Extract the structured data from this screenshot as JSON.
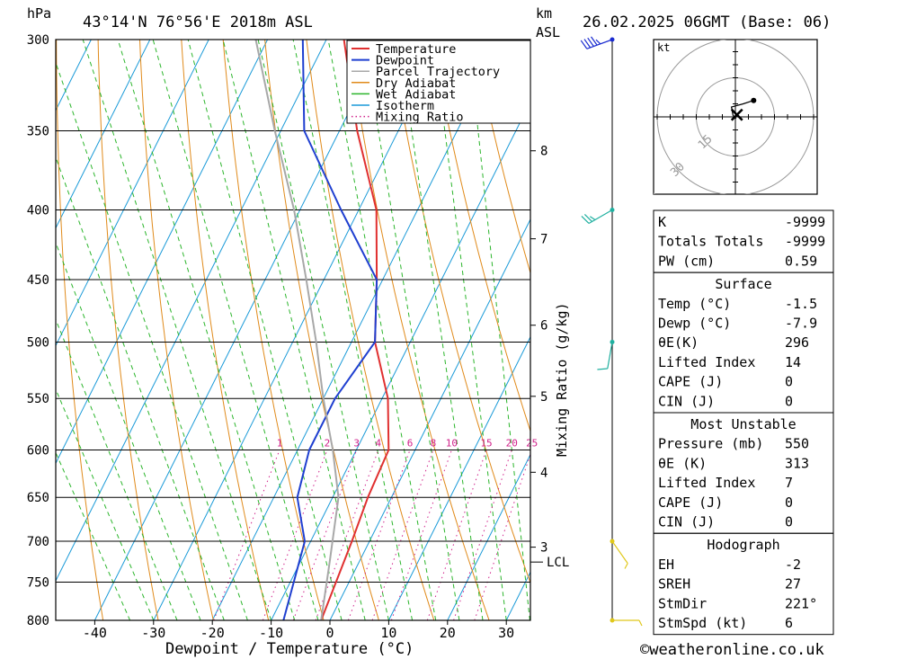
{
  "header": {
    "unit_hpa": "hPa",
    "location": "43°14'N 76°56'E 2018m ASL",
    "unit_km": "km",
    "unit_asl": "ASL",
    "datetime": "26.02.2025 06GMT (Base: 06)"
  },
  "footer": {
    "xlabel": "Dewpoint / Temperature (°C)",
    "mixing_label": "Mixing Ratio (g/kg)",
    "credit": "©weatheronline.co.uk"
  },
  "colors": {
    "temperature": "#e03030",
    "dewpoint": "#1f3fd0",
    "parcel": "#a8a8a8",
    "dry_adiabat": "#e08a1a",
    "wet_adiabat": "#2bb52b",
    "isotherm": "#1a9ad8",
    "mixing_ratio": "#d0208a",
    "wind": "#1a2bd0"
  },
  "chart_data": {
    "type": "line",
    "x_axis": {
      "label": "Dewpoint / Temperature (°C)",
      "range": [
        -47,
        34
      ],
      "ticks": [
        -40,
        -30,
        -20,
        -10,
        0,
        10,
        20,
        30
      ]
    },
    "y_axis": {
      "unit": "hPa",
      "scale": "log",
      "range": [
        800,
        300
      ],
      "ticks": [
        300,
        350,
        400,
        450,
        500,
        550,
        600,
        650,
        700,
        750,
        800
      ]
    },
    "km_ticks": [
      {
        "km": "8",
        "p": 362
      },
      {
        "km": "7",
        "p": 420
      },
      {
        "km": "6",
        "p": 486
      },
      {
        "km": "5",
        "p": 548
      },
      {
        "km": "4",
        "p": 623
      },
      {
        "km": "3",
        "p": 707
      }
    ],
    "lcl": {
      "label": "LCL",
      "p": 725
    },
    "legend": [
      "Temperature",
      "Dewpoint",
      "Parcel Trajectory",
      "Dry Adiabat",
      "Wet Adiabat",
      "Isotherm",
      "Mixing Ratio"
    ],
    "mixing_ratio_labels": [
      "1",
      "2",
      "3",
      "4",
      "6",
      "8",
      "10",
      "15",
      "20",
      "25"
    ],
    "mixing_ratio_values": [
      1,
      2,
      3,
      4,
      6,
      8,
      10,
      15,
      20,
      25
    ],
    "series": [
      {
        "name": "Temperature",
        "points": [
          [
            -1.5,
            800
          ],
          [
            -3,
            700
          ],
          [
            -4,
            650
          ],
          [
            -4.5,
            600
          ],
          [
            -9,
            550
          ],
          [
            -16,
            500
          ],
          [
            -21,
            450
          ],
          [
            -27,
            400
          ],
          [
            -37,
            350
          ],
          [
            -47,
            300
          ]
        ]
      },
      {
        "name": "Dewpoint",
        "points": [
          [
            -7.9,
            800
          ],
          [
            -11,
            700
          ],
          [
            -16,
            650
          ],
          [
            -18,
            600
          ],
          [
            -18,
            550
          ],
          [
            -16,
            500
          ],
          [
            -21,
            450
          ],
          [
            -33,
            400
          ],
          [
            -46,
            350
          ],
          [
            -54,
            300
          ]
        ]
      },
      {
        "name": "Parcel Trajectory",
        "points": [
          [
            -1.5,
            800
          ],
          [
            -5,
            725
          ],
          [
            -9,
            650
          ],
          [
            -14,
            600
          ],
          [
            -20,
            550
          ],
          [
            -26,
            500
          ],
          [
            -33,
            450
          ],
          [
            -41,
            400
          ],
          [
            -51,
            350
          ],
          [
            -62,
            300
          ]
        ]
      }
    ],
    "wind_barbs": [
      {
        "p": 300,
        "dir_deg": 250,
        "speed_kt": 45
      },
      {
        "p": 400,
        "dir_deg": 240,
        "speed_kt": 25
      },
      {
        "p": 500,
        "dir_deg": 190,
        "speed_kt": 10
      },
      {
        "p": 700,
        "dir_deg": 145,
        "speed_kt": 5
      },
      {
        "p": 800,
        "dir_deg": 90,
        "speed_kt": 5
      }
    ],
    "hodograph": {
      "unit": "kt",
      "rings": [
        15,
        30,
        45
      ],
      "ring_labels": [
        "15",
        "30",
        "45"
      ],
      "points": [
        [
          0.3,
          -0.6
        ],
        [
          -0.9,
          0.6
        ],
        [
          -1.5,
          3.8
        ],
        [
          3.0,
          5.0
        ],
        [
          7.0,
          6.3
        ]
      ],
      "storm_motion": [
        0.6,
        0.8
      ]
    }
  },
  "indices": [
    {
      "label": "K",
      "value": "-9999"
    },
    {
      "label": "Totals Totals",
      "value": "-9999"
    },
    {
      "label": "PW (cm)",
      "value": "0.59"
    }
  ],
  "surface": {
    "title": "Surface",
    "rows": [
      {
        "label": "Temp (°C)",
        "value": "-1.5"
      },
      {
        "label": "Dewp (°C)",
        "value": "-7.9"
      },
      {
        "label": "θE(K)",
        "value": "296"
      },
      {
        "label": "Lifted Index",
        "value": "14"
      },
      {
        "label": "CAPE (J)",
        "value": "0"
      },
      {
        "label": "CIN (J)",
        "value": "0"
      }
    ]
  },
  "most_unstable": {
    "title": "Most Unstable",
    "rows": [
      {
        "label": "Pressure (mb)",
        "value": "550"
      },
      {
        "label": "θE (K)",
        "value": "313"
      },
      {
        "label": "Lifted Index",
        "value": "7"
      },
      {
        "label": "CAPE (J)",
        "value": "0"
      },
      {
        "label": "CIN (J)",
        "value": "0"
      }
    ]
  },
  "hodograph_table": {
    "title": "Hodograph",
    "rows": [
      {
        "label": "EH",
        "value": "-2"
      },
      {
        "label": "SREH",
        "value": "27"
      },
      {
        "label": "StmDir",
        "value": "221°"
      },
      {
        "label": "StmSpd (kt)",
        "value": "6"
      }
    ]
  }
}
